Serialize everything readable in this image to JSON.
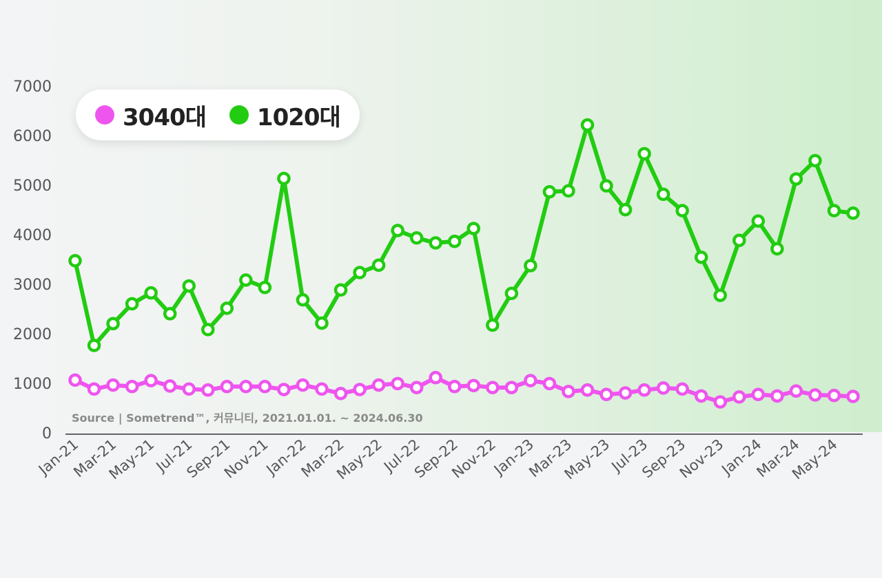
{
  "legend": {
    "items": [
      {
        "label": "3040대",
        "color": "#ee55ee"
      },
      {
        "label": "1020대",
        "color": "#22cc11"
      }
    ]
  },
  "source": "Source | Sometrend™, 커뮤니티, 2021.01.01. ~ 2024.06.30",
  "chart_data": {
    "type": "line",
    "ylim": [
      0,
      7000
    ],
    "yticks": [
      0,
      1000,
      2000,
      3000,
      4000,
      5000,
      6000,
      7000
    ],
    "grid": false,
    "legend_position": "top-left",
    "x": [
      "Jan-21",
      "Feb-21",
      "Mar-21",
      "Apr-21",
      "May-21",
      "Jun-21",
      "Jul-21",
      "Aug-21",
      "Sep-21",
      "Oct-21",
      "Nov-21",
      "Dec-21",
      "Jan-22",
      "Feb-22",
      "Mar-22",
      "Apr-22",
      "May-22",
      "Jun-22",
      "Jul-22",
      "Aug-22",
      "Sep-22",
      "Oct-22",
      "Nov-22",
      "Dec-22",
      "Jan-23",
      "Feb-23",
      "Mar-23",
      "Apr-23",
      "May-23",
      "Jun-23",
      "Jul-23",
      "Aug-23",
      "Sep-23",
      "Oct-23",
      "Nov-23",
      "Dec-23",
      "Jan-24",
      "Feb-24",
      "Mar-24",
      "Apr-24",
      "May-24",
      "Jun-24"
    ],
    "xtick_labels": [
      "Jan-21",
      "Mar-21",
      "May-21",
      "Jul-21",
      "Sep-21",
      "Nov-21",
      "Jan-22",
      "Mar-22",
      "May-22",
      "Jul-22",
      "Sep-22",
      "Nov-22",
      "Jan-23",
      "Mar-23",
      "May-23",
      "Jul-23",
      "Sep-23",
      "Nov-23",
      "Jan-24",
      "Mar-24",
      "May-24"
    ],
    "series": [
      {
        "name": "1020대",
        "color": "#22cc11",
        "values": [
          3460,
          1750,
          2190,
          2590,
          2810,
          2390,
          2950,
          2070,
          2500,
          3070,
          2920,
          5120,
          2670,
          2200,
          2870,
          3220,
          3370,
          4070,
          3920,
          3820,
          3850,
          4110,
          2160,
          2800,
          3360,
          4850,
          4870,
          6200,
          4970,
          4490,
          5620,
          4800,
          4470,
          3530,
          2760,
          3870,
          4260,
          3700,
          5110,
          5480,
          4470,
          4420
        ]
      },
      {
        "name": "3040대",
        "color": "#ee55ee",
        "values": [
          1050,
          870,
          950,
          920,
          1040,
          930,
          870,
          850,
          920,
          920,
          920,
          860,
          950,
          870,
          780,
          860,
          950,
          980,
          900,
          1100,
          920,
          940,
          900,
          900,
          1040,
          980,
          820,
          850,
          760,
          790,
          850,
          890,
          870,
          730,
          610,
          710,
          760,
          730,
          830,
          750,
          740,
          720
        ]
      }
    ]
  }
}
